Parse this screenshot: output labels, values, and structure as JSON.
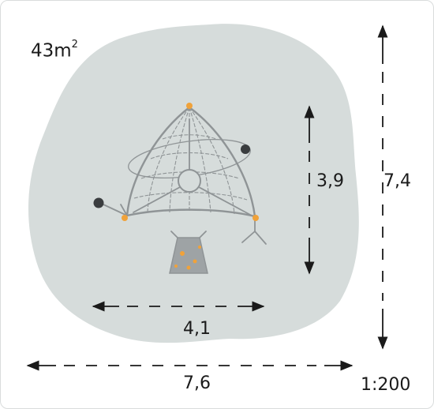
{
  "area": {
    "value": "43m",
    "unit_sup": "2"
  },
  "dimensions": {
    "equipment_height": "3,9",
    "zone_height": "7,4",
    "equipment_width": "4,1",
    "zone_width": "7,6"
  },
  "scale": "1:200",
  "colors": {
    "safety_zone": "#d6dcdb",
    "structure": "#8f9496",
    "accent_orange": "#f0a23a",
    "ball_dark": "#3a3d3f",
    "ramp_fill": "#9ea3a5",
    "arrows": "#1a1a1a"
  },
  "icons": [
    "arrow-up-icon",
    "arrow-down-icon",
    "arrow-left-icon",
    "arrow-right-icon"
  ]
}
